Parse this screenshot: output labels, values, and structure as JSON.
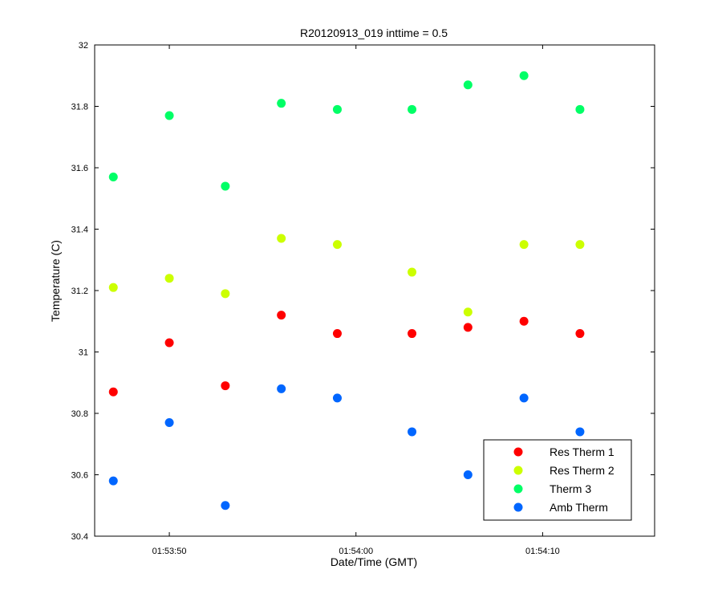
{
  "chart_data": {
    "type": "scatter",
    "title": "R20120913_019 inttime = 0.5",
    "xlabel": "Date/Time (GMT)",
    "ylabel": "Temperature (C)",
    "xlim": [
      "01:53:46",
      "01:54:16"
    ],
    "ylim": [
      30.4,
      32
    ],
    "x_ticks": [
      "01:53:50",
      "01:54:00",
      "01:54:10"
    ],
    "y_ticks": [
      30.4,
      30.6,
      30.8,
      31,
      31.2,
      31.4,
      31.6,
      31.8,
      32
    ],
    "y_tick_labels": [
      "30.4",
      "30.6",
      "30.8",
      "31",
      "31.2",
      "31.4",
      "31.6",
      "31.8",
      "32"
    ],
    "grid": false,
    "legend_position": "bottom-right",
    "x": [
      "01:53:47",
      "01:53:50",
      "01:53:53",
      "01:53:56",
      "01:53:59",
      "01:54:03",
      "01:54:06",
      "01:54:09",
      "01:54:12"
    ],
    "series": [
      {
        "name": "Res Therm 1",
        "color": "#ff0000",
        "values": [
          30.87,
          31.03,
          30.89,
          31.12,
          31.06,
          31.06,
          31.08,
          31.1,
          31.06
        ]
      },
      {
        "name": "Res Therm 2",
        "color": "#ccff00",
        "values": [
          31.21,
          31.24,
          31.19,
          31.37,
          31.35,
          31.26,
          31.13,
          31.35,
          31.35
        ]
      },
      {
        "name": "Therm 3",
        "color": "#00ff66",
        "values": [
          31.57,
          31.77,
          31.54,
          31.81,
          31.79,
          31.79,
          31.87,
          31.9,
          31.79
        ]
      },
      {
        "name": "Amb Therm",
        "color": "#0066ff",
        "values": [
          30.58,
          30.77,
          30.5,
          30.88,
          30.85,
          30.74,
          30.6,
          30.85,
          30.74
        ]
      }
    ]
  }
}
